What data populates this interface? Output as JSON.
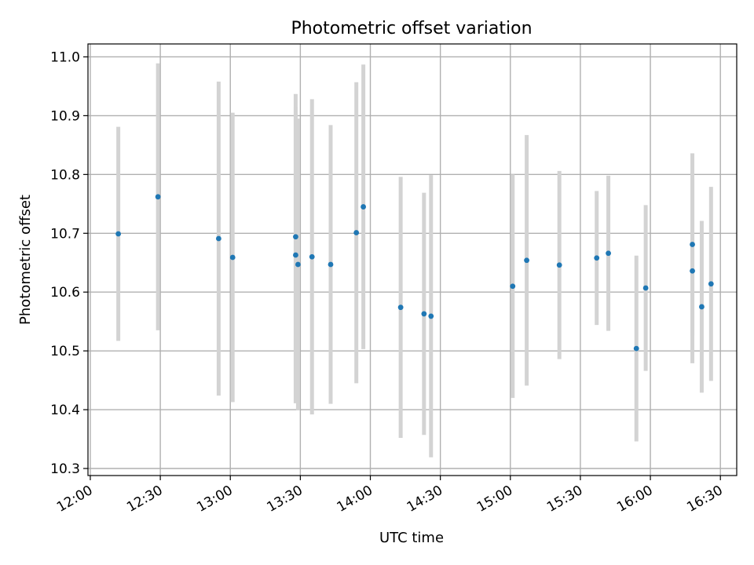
{
  "chart_data": {
    "type": "scatter",
    "title": "Photometric offset variation",
    "xlabel": "UTC time",
    "ylabel": "Photometric offset",
    "x_axis_type": "time",
    "xlim": [
      "11:59",
      "16:37"
    ],
    "ylim": [
      10.288,
      11.022
    ],
    "xticks": [
      "12:00",
      "12:30",
      "13:00",
      "13:30",
      "14:00",
      "14:30",
      "15:00",
      "15:30",
      "16:00",
      "16:30"
    ],
    "yticks": [
      10.3,
      10.4,
      10.5,
      10.6,
      10.7,
      10.8,
      10.9,
      11.0
    ],
    "ytick_labels": [
      "10.3",
      "10.4",
      "10.5",
      "10.6",
      "10.7",
      "10.8",
      "10.9",
      "11.0"
    ],
    "grid": true,
    "marker_color": "#1f77b4",
    "errorbar_color": "#d3d3d3",
    "points": [
      {
        "x": "12:12",
        "y": 10.699,
        "yerr": 0.182
      },
      {
        "x": "12:29",
        "y": 10.762,
        "yerr": 0.227
      },
      {
        "x": "12:55",
        "y": 10.691,
        "yerr": 0.267
      },
      {
        "x": "13:01",
        "y": 10.659,
        "yerr": 0.246
      },
      {
        "x": "13:28",
        "y": 10.694,
        "yerr": 0.243
      },
      {
        "x": "13:28",
        "y": 10.663,
        "yerr": 0.252
      },
      {
        "x": "13:29",
        "y": 10.647,
        "yerr": 0.248
      },
      {
        "x": "13:35",
        "y": 10.66,
        "yerr": 0.268
      },
      {
        "x": "13:43",
        "y": 10.647,
        "yerr": 0.237
      },
      {
        "x": "13:54",
        "y": 10.701,
        "yerr": 0.256
      },
      {
        "x": "13:57",
        "y": 10.745,
        "yerr": 0.242
      },
      {
        "x": "14:13",
        "y": 10.574,
        "yerr": 0.222
      },
      {
        "x": "14:23",
        "y": 10.563,
        "yerr": 0.206
      },
      {
        "x": "14:26",
        "y": 10.559,
        "yerr": 0.24
      },
      {
        "x": "15:01",
        "y": 10.61,
        "yerr": 0.19
      },
      {
        "x": "15:07",
        "y": 10.654,
        "yerr": 0.213
      },
      {
        "x": "15:21",
        "y": 10.646,
        "yerr": 0.16
      },
      {
        "x": "15:37",
        "y": 10.658,
        "yerr": 0.114
      },
      {
        "x": "15:42",
        "y": 10.666,
        "yerr": 0.132
      },
      {
        "x": "15:54",
        "y": 10.504,
        "yerr": 0.158
      },
      {
        "x": "15:58",
        "y": 10.607,
        "yerr": 0.141
      },
      {
        "x": "16:18",
        "y": 10.681,
        "yerr": 0.155
      },
      {
        "x": "16:18",
        "y": 10.636,
        "yerr": 0.157
      },
      {
        "x": "16:22",
        "y": 10.575,
        "yerr": 0.146
      },
      {
        "x": "16:26",
        "y": 10.614,
        "yerr": 0.165
      }
    ]
  }
}
